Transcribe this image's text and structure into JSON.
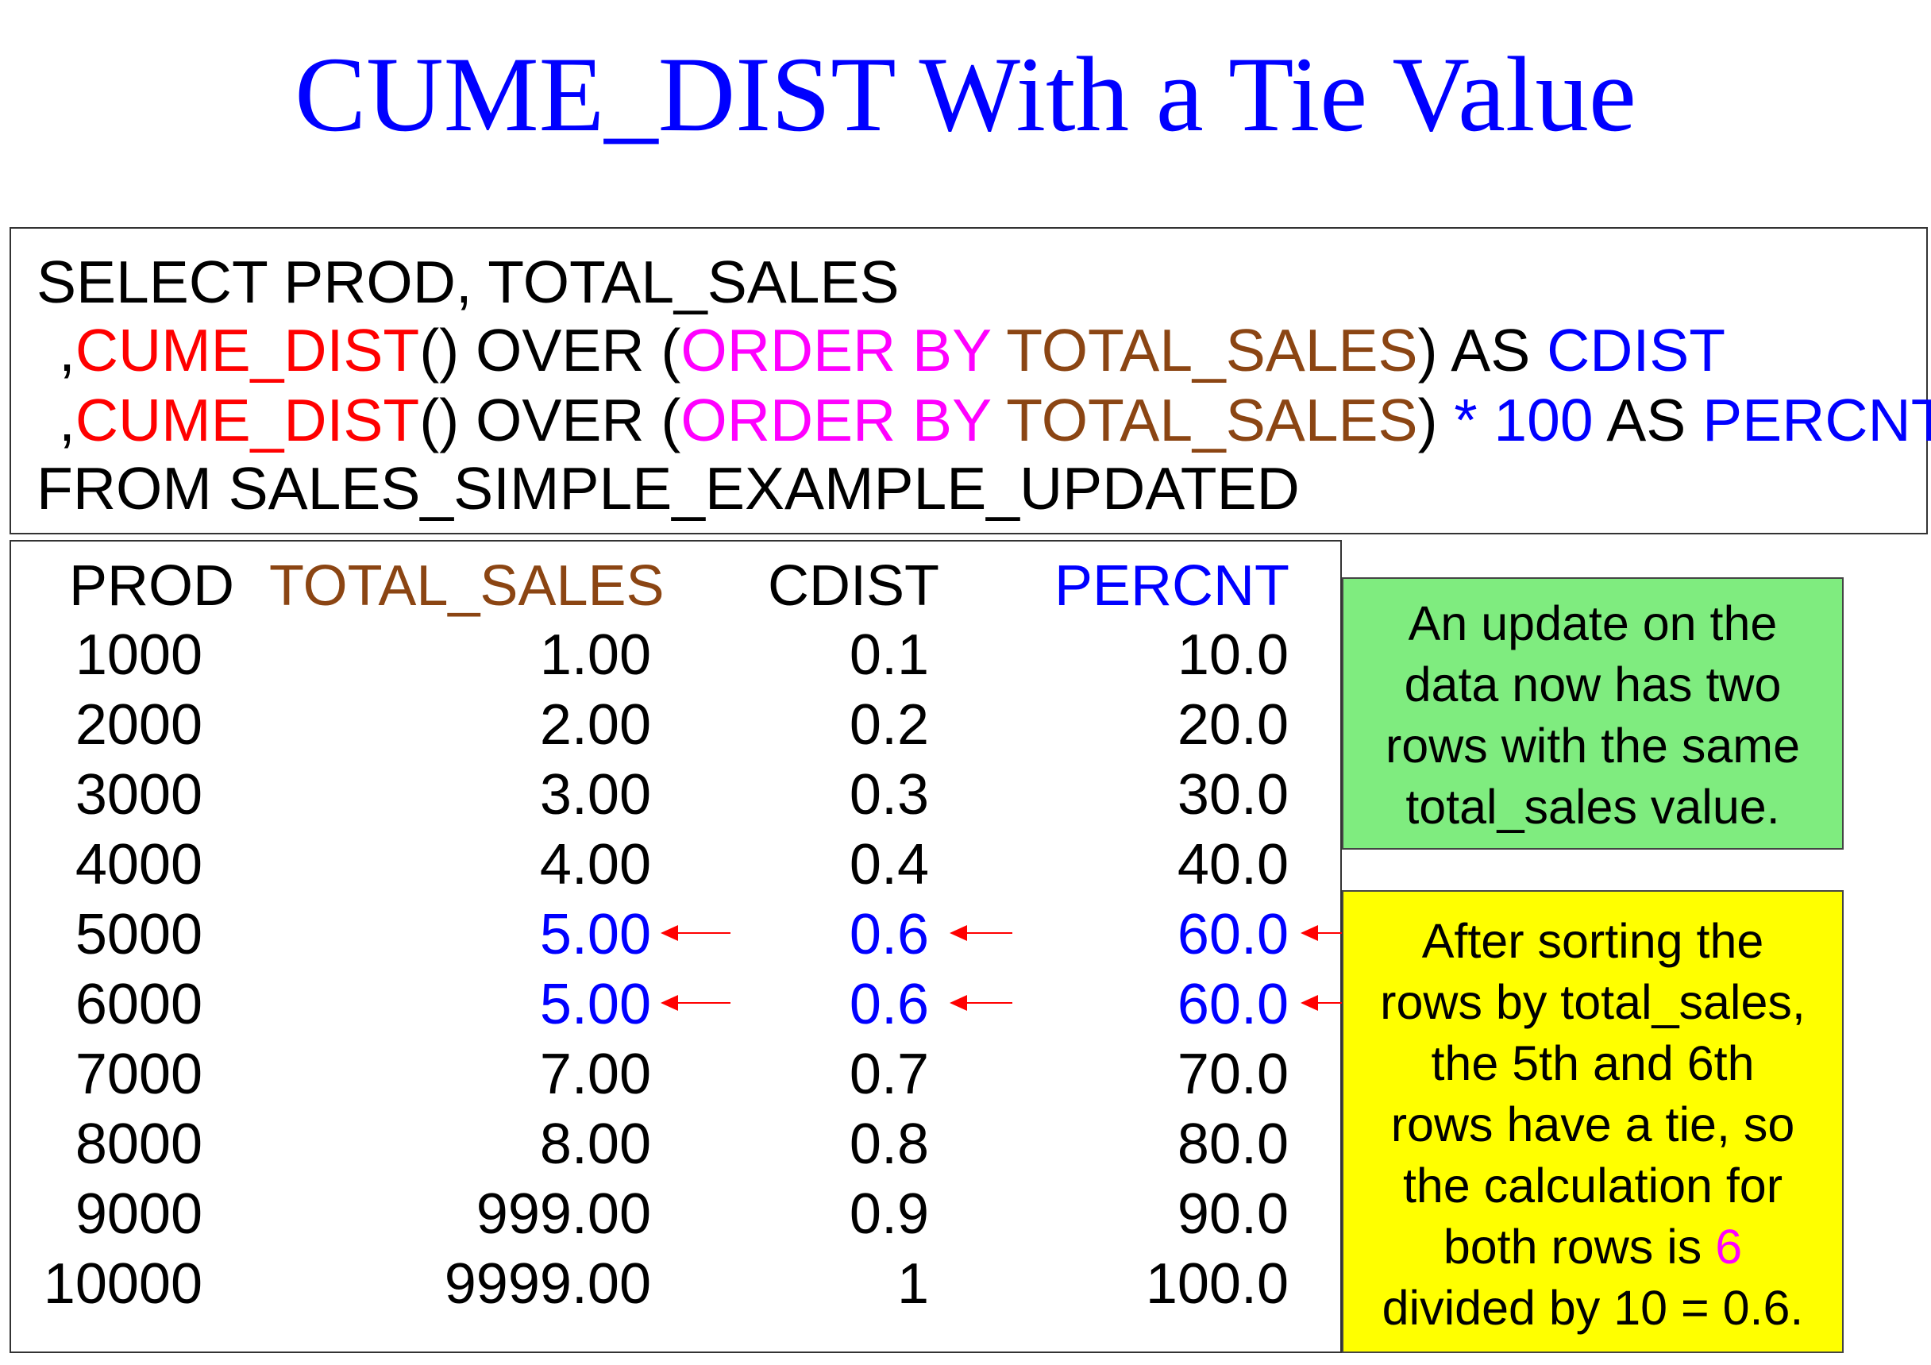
{
  "title": "CUME_DIST With a Tie Value",
  "code": {
    "line1": "SELECT PROD, TOTAL_SALES",
    "line2": {
      "comma": ",",
      "func": "CUME_DIST",
      "mid": "() OVER (",
      "order": "ORDER BY",
      "col": "TOTAL_SALES",
      "close": ") AS ",
      "alias": "CDIST"
    },
    "line3": {
      "comma": ",",
      "func": "CUME_DIST",
      "mid": "() OVER (",
      "order": "ORDER BY",
      "col": "TOTAL_SALES",
      "close": ") ",
      "mult": "* 100",
      "as": " AS ",
      "alias": "PERCNT"
    },
    "line4": "FROM SALES_SIMPLE_EXAMPLE_UPDATED"
  },
  "table": {
    "headers": {
      "prod": "PROD",
      "total_sales": "TOTAL_SALES",
      "cdist": "CDIST",
      "percnt": "PERCNT"
    },
    "rows": [
      {
        "prod": "1000",
        "total_sales": "1.00",
        "cdist": "0.1",
        "percnt": "10.0",
        "highlight": false
      },
      {
        "prod": "2000",
        "total_sales": "2.00",
        "cdist": "0.2",
        "percnt": "20.0",
        "highlight": false
      },
      {
        "prod": "3000",
        "total_sales": "3.00",
        "cdist": "0.3",
        "percnt": "30.0",
        "highlight": false
      },
      {
        "prod": "4000",
        "total_sales": "4.00",
        "cdist": "0.4",
        "percnt": "40.0",
        "highlight": false
      },
      {
        "prod": "5000",
        "total_sales": "5.00",
        "cdist": "0.6",
        "percnt": "60.0",
        "highlight": true
      },
      {
        "prod": "6000",
        "total_sales": "5.00",
        "cdist": "0.6",
        "percnt": "60.0",
        "highlight": true
      },
      {
        "prod": "7000",
        "total_sales": "7.00",
        "cdist": "0.7",
        "percnt": "70.0",
        "highlight": false
      },
      {
        "prod": "8000",
        "total_sales": "8.00",
        "cdist": "0.8",
        "percnt": "80.0",
        "highlight": false
      },
      {
        "prod": "9000",
        "total_sales": "999.00",
        "cdist": "0.9",
        "percnt": "90.0",
        "highlight": false
      },
      {
        "prod": "10000",
        "total_sales": "9999.00",
        "cdist": "1",
        "percnt": "100.0",
        "highlight": false
      }
    ]
  },
  "note_green": [
    "An update on the",
    "data now has two",
    "rows with the same",
    "total_sales value."
  ],
  "note_yellow": {
    "lines": [
      "After sorting the",
      "rows by total_sales,",
      "the 5th and 6th",
      "rows have a tie, so",
      "the calculation for"
    ],
    "line6_pre": "both rows is ",
    "line6_num": "6",
    "line7": "divided by 10 = 0.6."
  },
  "colors": {
    "title": "#0000ff",
    "func": "#ff0000",
    "order": "#ff00ff",
    "column": "#8b4513",
    "alias": "#0000ff",
    "highlight": "#0000ff",
    "arrow": "#ff0000",
    "note_green": "#7fec7f",
    "note_yellow": "#ffff00"
  }
}
